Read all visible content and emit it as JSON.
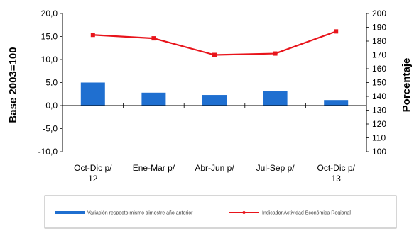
{
  "chart_data": {
    "type": "bar+line",
    "categories": [
      [
        "Oct-Dic p/",
        "12"
      ],
      [
        "Ene-Mar p/",
        ""
      ],
      [
        "Abr-Jun p/",
        ""
      ],
      [
        "Jul-Sep p/",
        ""
      ],
      [
        "Oct-Dic p/",
        "13"
      ]
    ],
    "series": [
      {
        "name": "Variación respecto mismo trimestre año anterior",
        "type": "bar",
        "axis": "left",
        "color": "#1f6fd0",
        "values": [
          5.0,
          2.8,
          2.3,
          3.1,
          1.2
        ]
      },
      {
        "name": "Indicador Actividad Económica Regional",
        "type": "line",
        "axis": "right",
        "color": "#e8141b",
        "values": [
          184.5,
          182,
          170,
          171,
          187
        ]
      }
    ],
    "ylabel_left": "Base 2003=100",
    "ylabel_right": "Porcentaje",
    "ylim_left": [
      -10,
      20
    ],
    "ylim_right": [
      100,
      200
    ],
    "yticks_left": [
      "20,0",
      "15,0",
      "10,0",
      "5,0",
      "0,0",
      "-5,0",
      "-10,0"
    ],
    "yticks_right": [
      "200",
      "190",
      "180",
      "170",
      "160",
      "150",
      "140",
      "130",
      "120",
      "110",
      "100"
    ],
    "grid": false,
    "legend_position": "bottom"
  }
}
